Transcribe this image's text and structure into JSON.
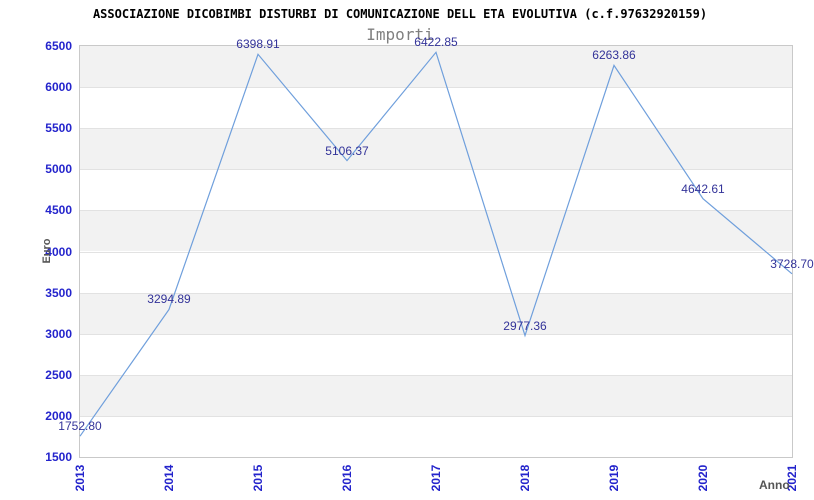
{
  "header": {
    "title": "ASSOCIAZIONE DICOBIMBI DISTURBI DI COMUNICAZIONE DELL ETA EVOLUTIVA (c.f.97632920159)",
    "subtitle": "Importi"
  },
  "chart_data": {
    "type": "line",
    "title": "ASSOCIAZIONE DICOBIMBI DISTURBI DI COMUNICAZIONE DELL ETA EVOLUTIVA (c.f.97632920159)",
    "subtitle": "Importi",
    "xlabel": "Anno",
    "ylabel": "Euro",
    "x": [
      "2013",
      "2014",
      "2015",
      "2016",
      "2017",
      "2018",
      "2019",
      "2020",
      "2021"
    ],
    "values": [
      1752.8,
      3294.89,
      6398.91,
      5106.37,
      6422.85,
      2977.36,
      6263.86,
      4642.61,
      3728.7
    ],
    "point_labels": [
      "1752.80",
      "3294.89",
      "6398.91",
      "5106.37",
      "6422.85",
      "2977.36",
      "6263.86",
      "4642.61",
      "3728.70"
    ],
    "ylim": [
      1500,
      6500
    ],
    "ytick_step": 500,
    "yticks": [
      1500,
      2000,
      2500,
      3000,
      3500,
      4000,
      4500,
      5000,
      5500,
      6000,
      6500
    ],
    "grid": "horizontal-bands-alternating",
    "legend": "none"
  },
  "colors": {
    "title": "#000000",
    "subtitle": "#808080",
    "line": "#6f9fdc",
    "tick_label": "#2424cc",
    "point_label": "#333399",
    "band_gray": "#f2f2f2",
    "band_white": "#ffffff",
    "grid_line": "#e2e2e2",
    "axis_border": "#c9c9c9",
    "axis_title": "#555555"
  }
}
